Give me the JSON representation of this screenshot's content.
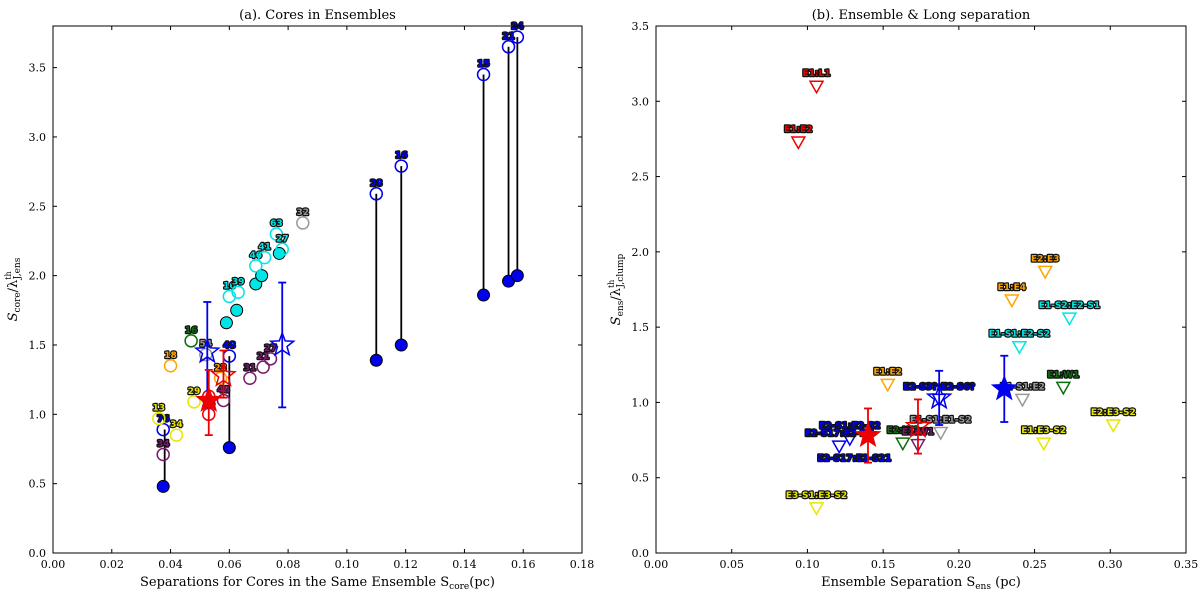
{
  "chart_data": [
    {
      "type": "scatter",
      "title": "(a). Cores in Ensembles",
      "xlabel": "Separations for Cores in the Same Ensemble S",
      "xlabel_sub": "core",
      "xlabel_unit": "(pc)",
      "ylabel_main": "S",
      "ylabel_sub": "core",
      "ylabel_lambda": "/λ",
      "ylabel_sup": "th",
      "ylabel_sub2": "J,ens",
      "xlim": [
        0,
        0.18
      ],
      "ylim": [
        0,
        3.8
      ],
      "xticks": [
        0.0,
        0.02,
        0.04,
        0.06,
        0.08,
        0.1,
        0.12,
        0.14,
        0.16,
        0.18
      ],
      "yticks": [
        0.0,
        0.5,
        1.0,
        1.5,
        2.0,
        2.5,
        3.0,
        3.5
      ],
      "tick_decimals_x": 2,
      "tick_decimals_y": 1,
      "vlines": [
        {
          "x": 0.038,
          "y0": 0.48,
          "y1": 0.89
        },
        {
          "x": 0.06,
          "y0": 0.76,
          "y1": 1.42
        },
        {
          "x": 0.11,
          "y0": 1.39,
          "y1": 2.59
        },
        {
          "x": 0.1185,
          "y0": 1.5,
          "y1": 2.79
        },
        {
          "x": 0.1465,
          "y0": 1.86,
          "y1": 3.45
        },
        {
          "x": 0.155,
          "y0": 1.96,
          "y1": 3.65
        },
        {
          "x": 0.158,
          "y0": 2.0,
          "y1": 3.72
        }
      ],
      "points": [
        {
          "x": 0.0375,
          "y": 0.48,
          "color": "#0000ee",
          "marker": "circle",
          "filled": true
        },
        {
          "x": 0.06,
          "y": 0.76,
          "color": "#0000ee",
          "marker": "circle",
          "filled": true
        },
        {
          "x": 0.11,
          "y": 1.39,
          "color": "#0000ee",
          "marker": "circle",
          "filled": true
        },
        {
          "x": 0.1185,
          "y": 1.5,
          "color": "#0000ee",
          "marker": "circle",
          "filled": true
        },
        {
          "x": 0.1465,
          "y": 1.86,
          "color": "#0000ee",
          "marker": "circle",
          "filled": true
        },
        {
          "x": 0.155,
          "y": 1.96,
          "color": "#0000ee",
          "marker": "circle",
          "filled": true
        },
        {
          "x": 0.158,
          "y": 2.0,
          "color": "#0000ee",
          "marker": "circle",
          "filled": true
        },
        {
          "x": 0.0375,
          "y": 0.89,
          "color": "#0000ee",
          "marker": "circle",
          "filled": false,
          "label": "76"
        },
        {
          "x": 0.06,
          "y": 1.42,
          "color": "#0000ee",
          "marker": "circle",
          "filled": false,
          "label": "48"
        },
        {
          "x": 0.11,
          "y": 2.59,
          "color": "#0000ee",
          "marker": "circle",
          "filled": false,
          "label": "28"
        },
        {
          "x": 0.1185,
          "y": 2.79,
          "color": "#0000ee",
          "marker": "circle",
          "filled": false,
          "label": "16"
        },
        {
          "x": 0.1465,
          "y": 3.45,
          "color": "#0000ee",
          "marker": "circle",
          "filled": false,
          "label": "15"
        },
        {
          "x": 0.155,
          "y": 3.65,
          "color": "#0000ee",
          "marker": "circle",
          "filled": false,
          "label": "21"
        },
        {
          "x": 0.158,
          "y": 3.72,
          "color": "#0000ee",
          "marker": "circle",
          "filled": false,
          "label": "24"
        },
        {
          "x": 0.059,
          "y": 1.66,
          "color": "#00e5e5",
          "marker": "circle",
          "filled": true
        },
        {
          "x": 0.0625,
          "y": 1.75,
          "color": "#00e5e5",
          "marker": "circle",
          "filled": true
        },
        {
          "x": 0.069,
          "y": 1.94,
          "color": "#00e5e5",
          "marker": "circle",
          "filled": true
        },
        {
          "x": 0.071,
          "y": 2.0,
          "color": "#00e5e5",
          "marker": "circle",
          "filled": true
        },
        {
          "x": 0.077,
          "y": 2.16,
          "color": "#00e5e5",
          "marker": "circle",
          "filled": true
        },
        {
          "x": 0.06,
          "y": 1.85,
          "color": "#00e5e5",
          "marker": "circle",
          "filled": false,
          "label": "16"
        },
        {
          "x": 0.063,
          "y": 1.88,
          "color": "#00e5e5",
          "marker": "circle",
          "filled": false,
          "label": "39"
        },
        {
          "x": 0.069,
          "y": 2.07,
          "color": "#00e5e5",
          "marker": "circle",
          "filled": false,
          "label": "46"
        },
        {
          "x": 0.072,
          "y": 2.13,
          "color": "#00e5e5",
          "marker": "circle",
          "filled": false,
          "label": "41"
        },
        {
          "x": 0.076,
          "y": 2.3,
          "color": "#00e5e5",
          "marker": "circle",
          "filled": false,
          "label": "63"
        },
        {
          "x": 0.078,
          "y": 2.19,
          "color": "#00e5e5",
          "marker": "circle",
          "filled": false,
          "label": "27"
        },
        {
          "x": 0.085,
          "y": 2.38,
          "color": "#999999",
          "marker": "circle",
          "filled": false,
          "label": "32"
        },
        {
          "x": 0.052,
          "y": 1.43,
          "color": "#999999",
          "marker": "circle",
          "filled": false,
          "label": "54"
        },
        {
          "x": 0.047,
          "y": 1.53,
          "color": "#0a6e0a",
          "marker": "circle",
          "filled": false,
          "label": "16"
        },
        {
          "x": 0.04,
          "y": 1.35,
          "color": "#ffa500",
          "marker": "circle",
          "filled": false,
          "label": "18"
        },
        {
          "x": 0.057,
          "y": 1.26,
          "color": "#ffa500",
          "marker": "circle",
          "filled": false,
          "label": "23"
        },
        {
          "x": 0.036,
          "y": 0.97,
          "color": "#e6e600",
          "marker": "circle",
          "filled": false,
          "label": "13"
        },
        {
          "x": 0.042,
          "y": 0.85,
          "color": "#e6e600",
          "marker": "circle",
          "filled": false,
          "label": "34"
        },
        {
          "x": 0.048,
          "y": 1.09,
          "color": "#e6e600",
          "marker": "circle",
          "filled": false,
          "label": "29"
        },
        {
          "x": 0.0375,
          "y": 0.71,
          "color": "#7a1a6e",
          "marker": "circle",
          "filled": false,
          "label": "34"
        },
        {
          "x": 0.067,
          "y": 1.26,
          "color": "#7a1a6e",
          "marker": "circle",
          "filled": false,
          "label": "31"
        },
        {
          "x": 0.0715,
          "y": 1.34,
          "color": "#7a1a6e",
          "marker": "circle",
          "filled": false,
          "label": "21"
        },
        {
          "x": 0.074,
          "y": 1.4,
          "color": "#7a1a6e",
          "marker": "circle",
          "filled": false,
          "label": "27"
        },
        {
          "x": 0.058,
          "y": 1.1,
          "color": "#7a1a6e",
          "marker": "circle",
          "filled": false,
          "label": "48"
        },
        {
          "x": 0.053,
          "y": 1.0,
          "color": "#ee0000",
          "marker": "circle",
          "filled": false,
          "label": "16"
        },
        {
          "x": 0.053,
          "y": 1.13,
          "color": "#ee0000",
          "marker": "circle",
          "filled": false
        }
      ],
      "stars": [
        {
          "x": 0.0525,
          "y": 1.45,
          "yerr_low": 0.4,
          "yerr_high": 0.36,
          "color": "#0000ee",
          "filled": false
        },
        {
          "x": 0.078,
          "y": 1.5,
          "yerr_low": 0.45,
          "yerr_high": 0.45,
          "color": "#0000ee",
          "filled": false
        },
        {
          "x": 0.053,
          "y": 1.1,
          "yerr_low": 0.25,
          "yerr_high": 0.22,
          "color": "#ee0000",
          "filled": true
        },
        {
          "x": 0.058,
          "y": 1.28,
          "yerr_low": 0.16,
          "yerr_high": 0.18,
          "color": "#ee0000",
          "filled": false
        }
      ]
    },
    {
      "type": "scatter",
      "title": "(b). Ensemble & Long separation",
      "xlabel": "Ensemble Separation S",
      "xlabel_sub": "ens",
      "xlabel_unit": " (pc)",
      "ylabel_main": "S",
      "ylabel_sub": "ens",
      "ylabel_lambda": "/λ",
      "ylabel_sup": "th",
      "ylabel_sub2": "J,clump",
      "xlim": [
        0,
        0.35
      ],
      "ylim": [
        0,
        3.5
      ],
      "xticks": [
        0.0,
        0.05,
        0.1,
        0.15,
        0.2,
        0.25,
        0.3,
        0.35
      ],
      "yticks": [
        0.0,
        0.5,
        1.0,
        1.5,
        2.0,
        2.5,
        3.0,
        3.5
      ],
      "tick_decimals_x": 2,
      "tick_decimals_y": 1,
      "points": [
        {
          "x": 0.106,
          "y": 3.1,
          "color": "#ee0000",
          "marker": "tri",
          "label": "E1:L1"
        },
        {
          "x": 0.094,
          "y": 2.73,
          "color": "#ee0000",
          "marker": "tri",
          "label": "E1:E2"
        },
        {
          "x": 0.257,
          "y": 1.87,
          "color": "#ffa500",
          "marker": "tri",
          "label": "E2:E3"
        },
        {
          "x": 0.235,
          "y": 1.68,
          "color": "#ffa500",
          "marker": "tri",
          "label": "E1:E4"
        },
        {
          "x": 0.153,
          "y": 1.12,
          "color": "#ffa500",
          "marker": "tri",
          "label": "E1:E2"
        },
        {
          "x": 0.273,
          "y": 1.56,
          "color": "#00e5e5",
          "marker": "tri",
          "label": "E1-S2:E2-S1"
        },
        {
          "x": 0.24,
          "y": 1.37,
          "color": "#00e5e5",
          "marker": "tri",
          "label": "E1-S1:E2-S2"
        },
        {
          "x": 0.269,
          "y": 1.1,
          "color": "#0a6e0a",
          "marker": "tri",
          "label": "E1:W1"
        },
        {
          "x": 0.242,
          "y": 1.02,
          "color": "#999999",
          "marker": "tri",
          "label": "E1-S1:E2"
        },
        {
          "x": 0.188,
          "y": 0.8,
          "color": "#999999",
          "marker": "tri",
          "label": "E1-S1:E1-S2"
        },
        {
          "x": 0.256,
          "y": 0.73,
          "color": "#e6e600",
          "marker": "tri",
          "label": "E1:E3-S2"
        },
        {
          "x": 0.302,
          "y": 0.85,
          "color": "#e6e600",
          "marker": "tri",
          "label": "E2:E3-S2"
        },
        {
          "x": 0.106,
          "y": 0.3,
          "color": "#e6e600",
          "marker": "tri",
          "label": "E3-S1:E3-S2"
        },
        {
          "x": 0.187,
          "y": 1.02,
          "color": "#0000ee",
          "marker": "tri",
          "label": "E2-S3?:E2-S6?"
        },
        {
          "x": 0.128,
          "y": 0.76,
          "color": "#0000ee",
          "marker": "tri",
          "label": "E2-S1:E2-S2"
        },
        {
          "x": 0.121,
          "y": 0.71,
          "color": "#0000ee",
          "marker": "tri",
          "label": "E2-S17:E2-D7"
        },
        {
          "x": 0.163,
          "y": 0.73,
          "color": "#0a6e0a",
          "marker": "tri",
          "label": "E2:W1"
        },
        {
          "x": 0.173,
          "y": 0.72,
          "color": "#7a1a6e",
          "marker": "tri",
          "label": "E1:W1"
        }
      ],
      "extra_labels": [
        {
          "x": 0.131,
          "y": 0.61,
          "color": "#0000ee",
          "label": "E2-S17:E2-S21"
        }
      ],
      "stars": [
        {
          "x": 0.23,
          "y": 1.09,
          "yerr_low": 0.22,
          "yerr_high": 0.22,
          "color": "#0000ee",
          "filled": true
        },
        {
          "x": 0.187,
          "y": 1.03,
          "yerr_low": 0.18,
          "yerr_high": 0.18,
          "color": "#0000ee",
          "filled": false
        },
        {
          "x": 0.14,
          "y": 0.78,
          "yerr_low": 0.18,
          "yerr_high": 0.18,
          "color": "#ee0000",
          "filled": true
        },
        {
          "x": 0.173,
          "y": 0.84,
          "yerr_low": 0.18,
          "yerr_high": 0.18,
          "color": "#ee0000",
          "filled": false
        }
      ]
    }
  ]
}
